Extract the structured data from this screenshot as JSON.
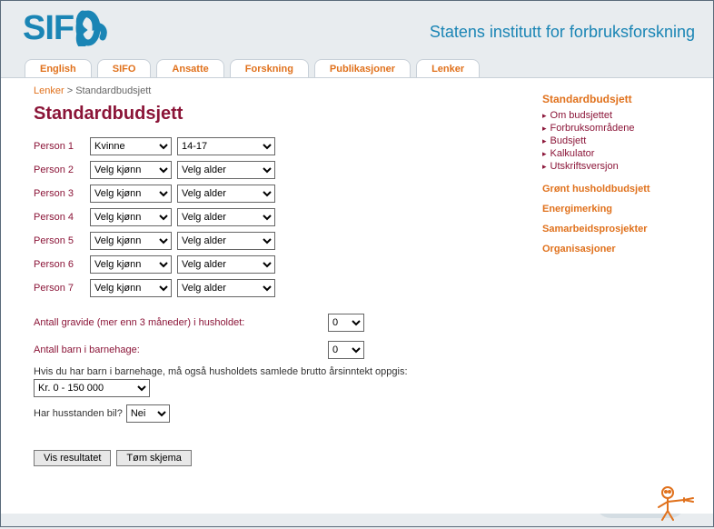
{
  "header": {
    "logo_text": "SIF",
    "tagline": "Statens institutt for forbruksforskning"
  },
  "nav": {
    "items": [
      "English",
      "SIFO",
      "Ansatte",
      "Forskning",
      "Publikasjoner",
      "Lenker"
    ]
  },
  "breadcrumb": {
    "link": "Lenker",
    "sep": " > ",
    "current": "Standardbudsjett"
  },
  "page_title": "Standardbudsjett",
  "persons": [
    {
      "label": "Person 1",
      "gender": "Kvinne",
      "age": "14-17"
    },
    {
      "label": "Person 2",
      "gender": "Velg kjønn",
      "age": "Velg alder"
    },
    {
      "label": "Person 3",
      "gender": "Velg kjønn",
      "age": "Velg alder"
    },
    {
      "label": "Person 4",
      "gender": "Velg kjønn",
      "age": "Velg alder"
    },
    {
      "label": "Person 5",
      "gender": "Velg kjønn",
      "age": "Velg alder"
    },
    {
      "label": "Person 6",
      "gender": "Velg kjønn",
      "age": "Velg alder"
    },
    {
      "label": "Person 7",
      "gender": "Velg kjønn",
      "age": "Velg alder"
    }
  ],
  "q_pregnant": {
    "label": "Antall gravide (mer enn 3 måneder) i husholdet:",
    "value": "0"
  },
  "q_kindergarten": {
    "label": "Antall barn i barnehage:",
    "value": "0"
  },
  "hint": "Hvis du har barn i barnehage, må også husholdets samlede brutto årsinntekt oppgis:",
  "income": {
    "value": "Kr. 0 - 150 000"
  },
  "car": {
    "label": "Har husstanden bil?",
    "value": "Nei"
  },
  "buttons": {
    "submit": "Vis resultatet",
    "reset": "Tøm skjema"
  },
  "side": {
    "title": "Standardbudsjett",
    "sub": [
      "Om budsjettet",
      "Forbruksområdene",
      "Budsjett",
      "Kalkulator",
      "Utskriftsversjon"
    ],
    "links": [
      "Grønt husholdbudsjett",
      "Energimerking",
      "Samarbeidsprosjekter",
      "Organisasjoner"
    ]
  },
  "colors": {
    "brand_blue": "#1a85b5",
    "accent_orange": "#e0711c",
    "maroon": "#8b1538",
    "bg": "#e8ecef",
    "shape": "#d4dde3"
  }
}
